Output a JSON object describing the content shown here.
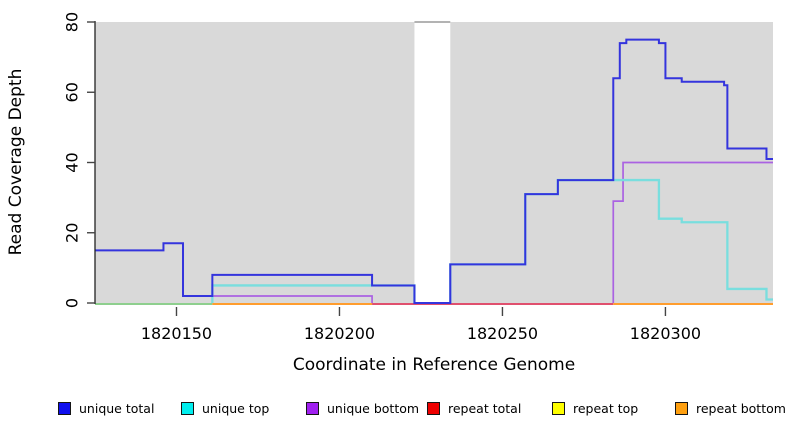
{
  "chart_data": {
    "type": "line",
    "subtype": "step",
    "title": "",
    "xlabel": "Coordinate in Reference Genome",
    "ylabel": "Read Coverage Depth",
    "xlim": [
      1820125,
      1820333
    ],
    "ylim": [
      0,
      80
    ],
    "xticks": [
      1820150,
      1820200,
      1820250,
      1820300
    ],
    "yticks": [
      0,
      20,
      40,
      60,
      80
    ],
    "grid": false,
    "legend_position": "bottom",
    "background": "#ffffff",
    "panel_bg": "#d9d9d9",
    "no_data_gap": {
      "from": 1820223,
      "to": 1820234
    },
    "series": [
      {
        "name": "unique total",
        "legend_color": "#0f0fee",
        "line_color": "#3434dd",
        "line_width": 2,
        "draw_zero_runs": true,
        "steps": [
          [
            1820125,
            15
          ],
          [
            1820146,
            17
          ],
          [
            1820152,
            2
          ],
          [
            1820161,
            8
          ],
          [
            1820210,
            5
          ],
          [
            1820223,
            0
          ],
          [
            1820234,
            11
          ],
          [
            1820257,
            31
          ],
          [
            1820267,
            35
          ],
          [
            1820284,
            64
          ],
          [
            1820286,
            74
          ],
          [
            1820288,
            75
          ],
          [
            1820298,
            74
          ],
          [
            1820300,
            64
          ],
          [
            1820305,
            63
          ],
          [
            1820318,
            62
          ],
          [
            1820319,
            44
          ],
          [
            1820331,
            41
          ],
          [
            1820333,
            41
          ]
        ]
      },
      {
        "name": "unique top",
        "legend_color": "#00eeee",
        "line_color": "#79dede",
        "line_width": 2.3,
        "draw_zero_runs": false,
        "steps": [
          [
            1820125,
            0
          ],
          [
            1820161,
            5
          ],
          [
            1820210,
            5
          ],
          [
            1820223,
            0
          ],
          [
            1820234,
            11
          ],
          [
            1820257,
            31
          ],
          [
            1820267,
            35
          ],
          [
            1820298,
            24
          ],
          [
            1820305,
            23
          ],
          [
            1820319,
            4
          ],
          [
            1820331,
            1
          ],
          [
            1820333,
            1
          ]
        ]
      },
      {
        "name": "unique bottom",
        "legend_color": "#a020f0",
        "line_color": "#aa62e2",
        "line_width": 1.7,
        "draw_zero_runs": false,
        "steps": [
          [
            1820125,
            0
          ],
          [
            1820161,
            2
          ],
          [
            1820210,
            0
          ],
          [
            1820284,
            29
          ],
          [
            1820287,
            40
          ],
          [
            1820333,
            40
          ]
        ]
      },
      {
        "name": "repeat total",
        "legend_color": "#ee0000",
        "line_color": "#e0506e",
        "line_width": 1.7,
        "draw_zero_runs": false,
        "steps": [
          [
            1820125,
            0
          ],
          [
            1820333,
            0
          ]
        ]
      },
      {
        "name": "repeat top",
        "legend_color": "#ffff00",
        "line_color": "#f0e040",
        "line_width": 1.7,
        "draw_zero_runs": false,
        "steps": [
          [
            1820125,
            0
          ],
          [
            1820333,
            0
          ]
        ]
      },
      {
        "name": "repeat bottom",
        "legend_color": "#ffa010",
        "line_color": "#ff9d2e",
        "line_width": 2,
        "draw_zero_runs": false,
        "steps": [
          [
            1820125,
            0
          ],
          [
            1820333,
            0
          ]
        ]
      }
    ],
    "baseline_zero_segments": [
      {
        "from": 1820125,
        "to": 1820161,
        "color": "#8ecf8e"
      },
      {
        "from": 1820161,
        "to": 1820210,
        "color": "#ff9d2e"
      },
      {
        "from": 1820210,
        "to": 1820284,
        "color": "#e0506e"
      },
      {
        "from": 1820284,
        "to": 1820333,
        "color": "#ff9d2e"
      }
    ]
  }
}
